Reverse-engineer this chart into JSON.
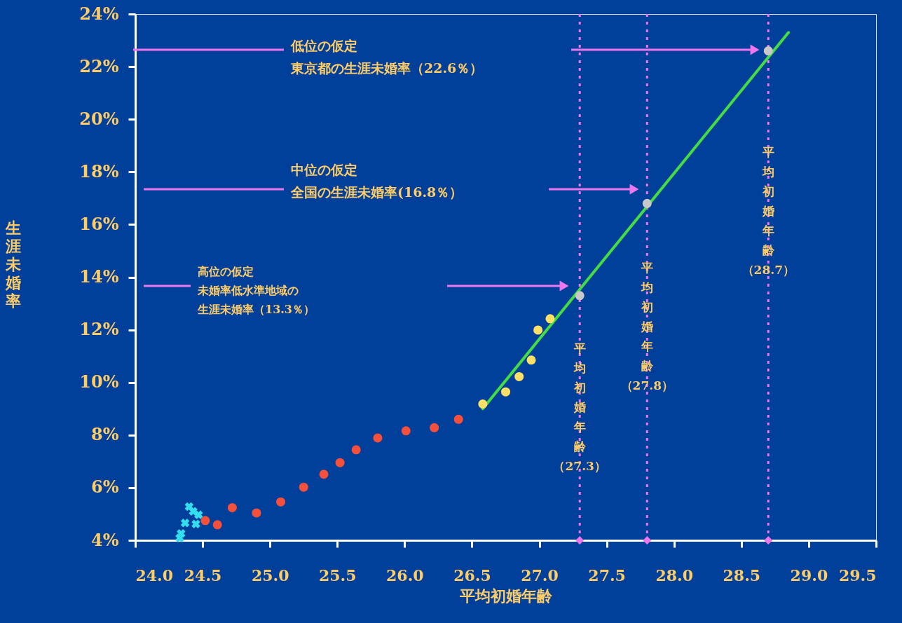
{
  "chart_data": {
    "type": "scatter",
    "xlabel": "平均初婚年齢",
    "ylabel": "生涯未婚率",
    "xlim": [
      24.0,
      29.5
    ],
    "xticks": [
      {
        "value": 24,
        "label": "24.0"
      },
      24.5,
      {
        "value": 25,
        "label": "25.0"
      },
      25.5,
      {
        "value": 26,
        "label": "26.0"
      },
      26.5,
      {
        "value": 27,
        "label": "27.0"
      },
      27.5,
      {
        "value": 28,
        "label": "28.0"
      },
      28.5,
      {
        "value": 29,
        "label": "29.0"
      },
      29.5
    ],
    "ylim": [
      4,
      24
    ],
    "yticks": [
      {
        "value": 4,
        "label": "4%"
      },
      {
        "value": 6,
        "label": "6%"
      },
      {
        "value": 8,
        "label": "8%"
      },
      {
        "value": 10,
        "label": "10%"
      },
      {
        "value": 12,
        "label": "12%"
      },
      {
        "value": 14,
        "label": "14%"
      },
      {
        "value": 16,
        "label": "16%"
      },
      {
        "value": 18,
        "label": "18%"
      },
      {
        "value": 20,
        "label": "20%"
      },
      {
        "value": 22,
        "label": "22%"
      },
      {
        "value": 24,
        "label": "24%"
      }
    ],
    "grid": false,
    "series": [
      {
        "type": "line",
        "color": "#44dd44",
        "marker": "none",
        "line_style": "solid",
        "x": [
          26.58,
          28.85
        ],
        "values": [
          9.0,
          23.3
        ]
      },
      {
        "color": "#33ddee",
        "marker": "cross",
        "x": [
          24.4,
          24.43,
          24.47,
          24.37,
          24.45,
          24.34,
          24.33
        ],
        "values": [
          5.28,
          5.1,
          4.97,
          4.66,
          4.62,
          4.26,
          4.09
        ]
      },
      {
        "color": "#f5503c",
        "marker": "circle",
        "x": [
          24.52,
          24.61,
          24.72,
          24.9,
          25.08,
          25.25,
          25.4,
          25.52,
          25.64,
          25.8,
          26.01,
          26.22,
          26.4
        ],
        "values": [
          4.75,
          4.59,
          5.24,
          5.04,
          5.46,
          6.02,
          6.51,
          6.95,
          7.44,
          7.89,
          8.16,
          8.28,
          8.6
        ]
      },
      {
        "color": "#ffe066",
        "marker": "circle",
        "x": [
          26.58,
          26.75,
          26.85,
          26.94,
          26.99,
          27.08
        ],
        "values": [
          9.18,
          9.64,
          10.22,
          10.85,
          11.99,
          12.42
        ]
      },
      {
        "color": "#c8c8c8",
        "marker": "circle",
        "x": [
          27.3,
          27.8,
          28.7
        ],
        "values": [
          13.3,
          16.8,
          22.6
        ]
      },
      {
        "color": "#ee77ee",
        "marker": "diamond",
        "x": [
          27.3,
          27.8,
          28.7
        ],
        "values": [
          4,
          4,
          4
        ]
      }
    ],
    "ref_lines": [
      {
        "axis": "x",
        "value": 27.3,
        "label": "平均初婚年齢（27.3）",
        "color": "#ee77ee",
        "line_style": "dotted"
      },
      {
        "axis": "x",
        "value": 27.8,
        "label": "平均初婚年齢（27.8）",
        "color": "#ee77ee",
        "line_style": "dotted"
      },
      {
        "axis": "x",
        "value": 28.7,
        "label": "平均初婚年齢（28.7）",
        "color": "#ee77ee",
        "line_style": "dotted"
      }
    ],
    "annotations": [
      "低位の仮定東京都の生涯未婚率（22.6％）",
      "中位の仮定全国の生涯未婚率(16.8％）",
      "高位の仮定未婚率低水準地域の生涯未婚率（13.3％）"
    ]
  }
}
